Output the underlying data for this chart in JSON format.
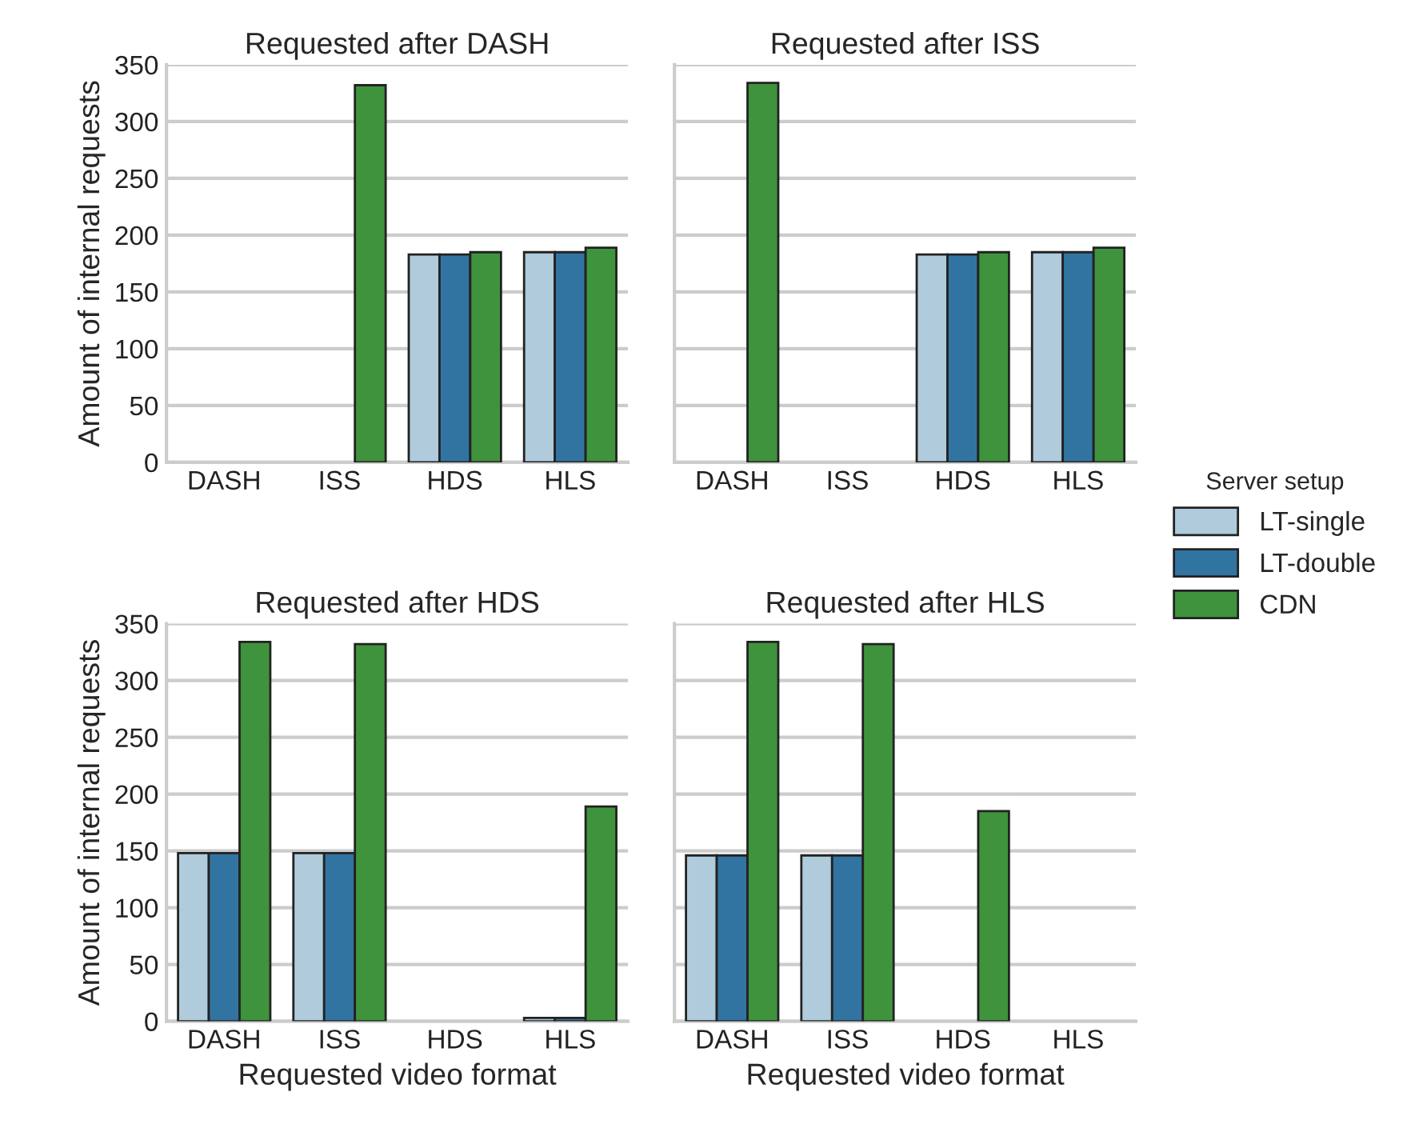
{
  "chart_data": [
    {
      "type": "bar",
      "title": "Requested after DASH",
      "ylabel": "Amount of internal requests",
      "categories": [
        "DASH",
        "ISS",
        "HDS",
        "HLS"
      ],
      "ylim": [
        0,
        350
      ],
      "yticks": [
        0,
        50,
        100,
        150,
        200,
        250,
        300,
        350
      ],
      "grid": "y",
      "tick_labels": "xy",
      "series": [
        {
          "color": "#afcbdc",
          "values": [
            null,
            null,
            183,
            185
          ]
        },
        {
          "color": "#3274a1",
          "values": [
            null,
            null,
            183,
            185
          ]
        },
        {
          "color": "#3f933c",
          "values": [
            null,
            332,
            185,
            189
          ]
        }
      ]
    },
    {
      "type": "bar",
      "title": "Requested after ISS",
      "categories": [
        "DASH",
        "ISS",
        "HDS",
        "HLS"
      ],
      "ylim": [
        0,
        350
      ],
      "yticks": [
        0,
        50,
        100,
        150,
        200,
        250,
        300,
        350
      ],
      "grid": "y",
      "tick_labels": "x",
      "legend": "right",
      "legend_title": "Server setup",
      "series": [
        {
          "name": "LT-single",
          "color": "#afcbdc",
          "values": [
            null,
            null,
            183,
            185
          ]
        },
        {
          "name": "LT-double",
          "color": "#3274a1",
          "values": [
            null,
            null,
            183,
            185
          ]
        },
        {
          "name": "CDN",
          "color": "#3f933c",
          "values": [
            334,
            null,
            185,
            189
          ]
        }
      ]
    },
    {
      "type": "bar",
      "title": "Requested after HDS",
      "xlabel": "Requested video format",
      "ylabel": "Amount of internal requests",
      "categories": [
        "DASH",
        "ISS",
        "HDS",
        "HLS"
      ],
      "ylim": [
        0,
        350
      ],
      "yticks": [
        0,
        50,
        100,
        150,
        200,
        250,
        300,
        350
      ],
      "grid": "y",
      "tick_labels": "xy",
      "series": [
        {
          "color": "#afcbdc",
          "values": [
            148,
            148,
            null,
            3
          ]
        },
        {
          "color": "#3274a1",
          "values": [
            148,
            148,
            null,
            3
          ]
        },
        {
          "color": "#3f933c",
          "values": [
            334,
            332,
            null,
            189
          ]
        }
      ]
    },
    {
      "type": "bar",
      "title": "Requested after HLS",
      "xlabel": "Requested video format",
      "categories": [
        "DASH",
        "ISS",
        "HDS",
        "HLS"
      ],
      "ylim": [
        0,
        350
      ],
      "yticks": [
        0,
        50,
        100,
        150,
        200,
        250,
        300,
        350
      ],
      "grid": "y",
      "tick_labels": "x",
      "series": [
        {
          "color": "#afcbdc",
          "values": [
            146,
            146,
            null,
            null
          ]
        },
        {
          "color": "#3274a1",
          "values": [
            146,
            146,
            null,
            null
          ]
        },
        {
          "color": "#3f933c",
          "values": [
            334,
            332,
            185,
            null
          ]
        }
      ]
    }
  ]
}
